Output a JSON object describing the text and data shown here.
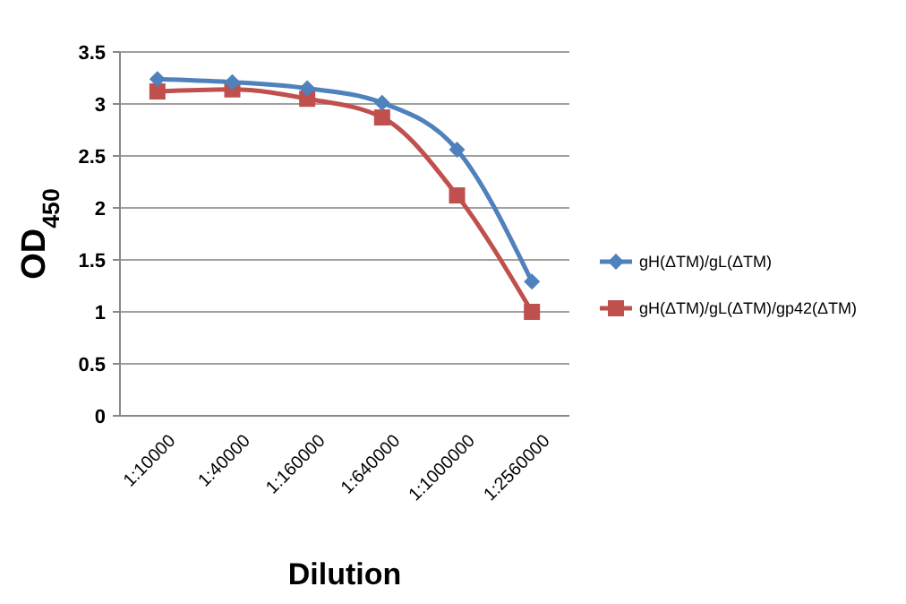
{
  "chart_data": {
    "type": "line",
    "xlabel": "Dilution",
    "ylabel": "OD$_{450}$",
    "categories": [
      "1:10000",
      "1:40000",
      "1:160000",
      "1:640000",
      "1:1000000",
      "1:2560000"
    ],
    "series": [
      {
        "name": "gH(ΔTM)/gL(ΔTM)",
        "color": "#4f81bd",
        "marker": "diamond",
        "values": [
          3.24,
          3.21,
          3.15,
          3.01,
          2.56,
          1.29
        ]
      },
      {
        "name": "gH(ΔTM)/gL(ΔTM)/gp42(ΔTM)",
        "color": "#c0504d",
        "marker": "square",
        "values": [
          3.12,
          3.14,
          3.05,
          2.87,
          2.12,
          1.0
        ]
      }
    ],
    "ylim": [
      0,
      3.5
    ],
    "yticks": [
      0,
      0.5,
      1,
      1.5,
      2,
      2.5,
      3,
      3.5
    ],
    "grid": "y",
    "legend": "right",
    "line_style": "solid"
  }
}
